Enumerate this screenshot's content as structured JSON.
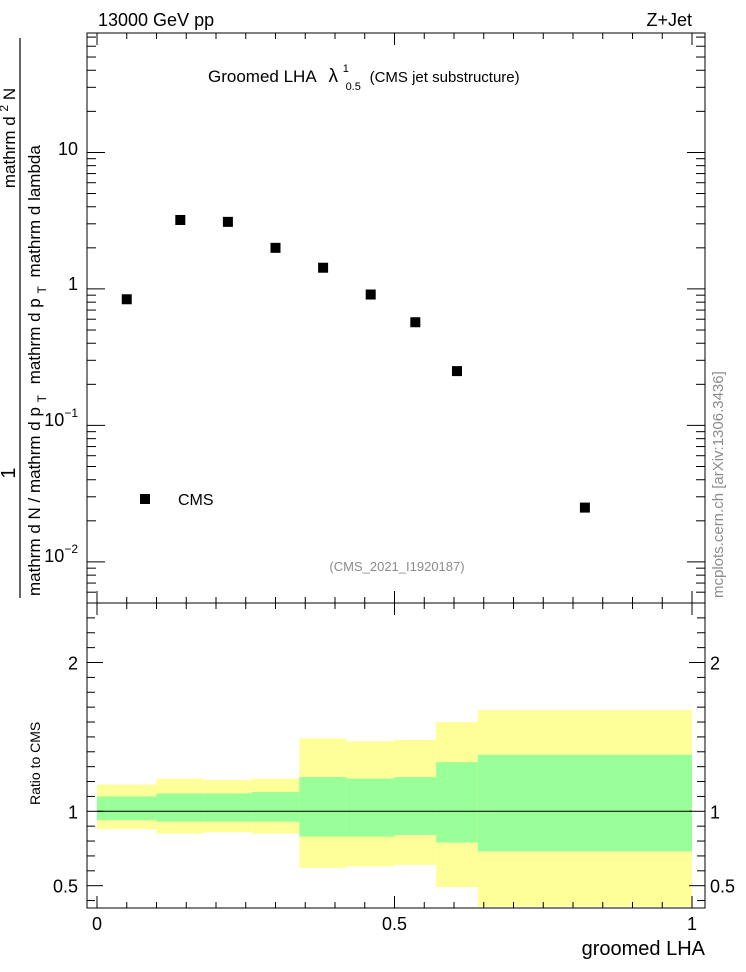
{
  "header": {
    "left": "13000 GeV pp",
    "right": "Z+Jet",
    "watermark": "mcplots.cern.ch [arXiv:1306.3436]",
    "analysis_id": "(CMS_2021_I1920187)"
  },
  "main_title": {
    "prefix": "Groomed LHA",
    "symbol": "λ",
    "sup": "1",
    "sub": "0.5",
    "suffix": "(CMS jet substructure)"
  },
  "main_ylabel": {
    "numerator_one": "1",
    "denominator": "mathrm d N / mathrm d p",
    "denominator_sub": "T",
    "numerator_main": "mathrm d",
    "numerator_sup": "2",
    "numerator_tail": "N",
    "line2": "mathrm d p",
    "line2_sub": "T",
    "line2_tail": "mathrm d lambda"
  },
  "legend": {
    "marker_label": "CMS"
  },
  "ratio": {
    "ylabel": "Ratio to CMS"
  },
  "xaxis": {
    "label": "groomed LHA",
    "ticks": [
      "0",
      "0.5",
      "1"
    ]
  },
  "yaxis_main": {
    "ticks": [
      {
        "value": 0.01,
        "base": "10",
        "exp": "−2"
      },
      {
        "value": 0.1,
        "base": "10",
        "exp": "−1"
      },
      {
        "value": 1,
        "base": "1",
        "exp": ""
      },
      {
        "value": 10,
        "base": "10",
        "exp": ""
      }
    ]
  },
  "yaxis_ratio": {
    "ticks": [
      "0.5",
      "1",
      "2"
    ]
  },
  "colors": {
    "inner_band": "#99ff99",
    "outer_band": "#ffff99",
    "marker": "#000000"
  },
  "chart_data": {
    "type": "scatter",
    "x_range": [
      0,
      1
    ],
    "y_scale": "log",
    "y_range": [
      0.005,
      75
    ],
    "series": [
      {
        "name": "CMS",
        "points": [
          {
            "x": 0.05,
            "y": 0.84
          },
          {
            "x": 0.14,
            "y": 3.2
          },
          {
            "x": 0.22,
            "y": 3.1
          },
          {
            "x": 0.3,
            "y": 2.0
          },
          {
            "x": 0.38,
            "y": 1.43
          },
          {
            "x": 0.46,
            "y": 0.91
          },
          {
            "x": 0.535,
            "y": 0.57
          },
          {
            "x": 0.605,
            "y": 0.25
          },
          {
            "x": 0.82,
            "y": 0.025
          }
        ]
      }
    ],
    "ratio_panel": {
      "y_range": [
        0.35,
        2.4
      ],
      "reference": 1.0,
      "bins": [
        {
          "x0": 0.0,
          "x1": 0.1,
          "inner": [
            0.94,
            1.1
          ],
          "outer": [
            0.88,
            1.18
          ]
        },
        {
          "x0": 0.1,
          "x1": 0.18,
          "inner": [
            0.93,
            1.12
          ],
          "outer": [
            0.85,
            1.22
          ]
        },
        {
          "x0": 0.18,
          "x1": 0.26,
          "inner": [
            0.93,
            1.12
          ],
          "outer": [
            0.86,
            1.21
          ]
        },
        {
          "x0": 0.26,
          "x1": 0.34,
          "inner": [
            0.93,
            1.13
          ],
          "outer": [
            0.85,
            1.22
          ]
        },
        {
          "x0": 0.34,
          "x1": 0.42,
          "inner": [
            0.83,
            1.23
          ],
          "outer": [
            0.62,
            1.49
          ]
        },
        {
          "x0": 0.42,
          "x1": 0.5,
          "inner": [
            0.83,
            1.22
          ],
          "outer": [
            0.63,
            1.47
          ]
        },
        {
          "x0": 0.5,
          "x1": 0.57,
          "inner": [
            0.84,
            1.23
          ],
          "outer": [
            0.64,
            1.48
          ]
        },
        {
          "x0": 0.57,
          "x1": 0.64,
          "inner": [
            0.79,
            1.33
          ],
          "outer": [
            0.49,
            1.6
          ]
        },
        {
          "x0": 0.64,
          "x1": 1.0,
          "inner": [
            0.73,
            1.38
          ],
          "outer": [
            0.36,
            1.68
          ]
        }
      ]
    }
  }
}
